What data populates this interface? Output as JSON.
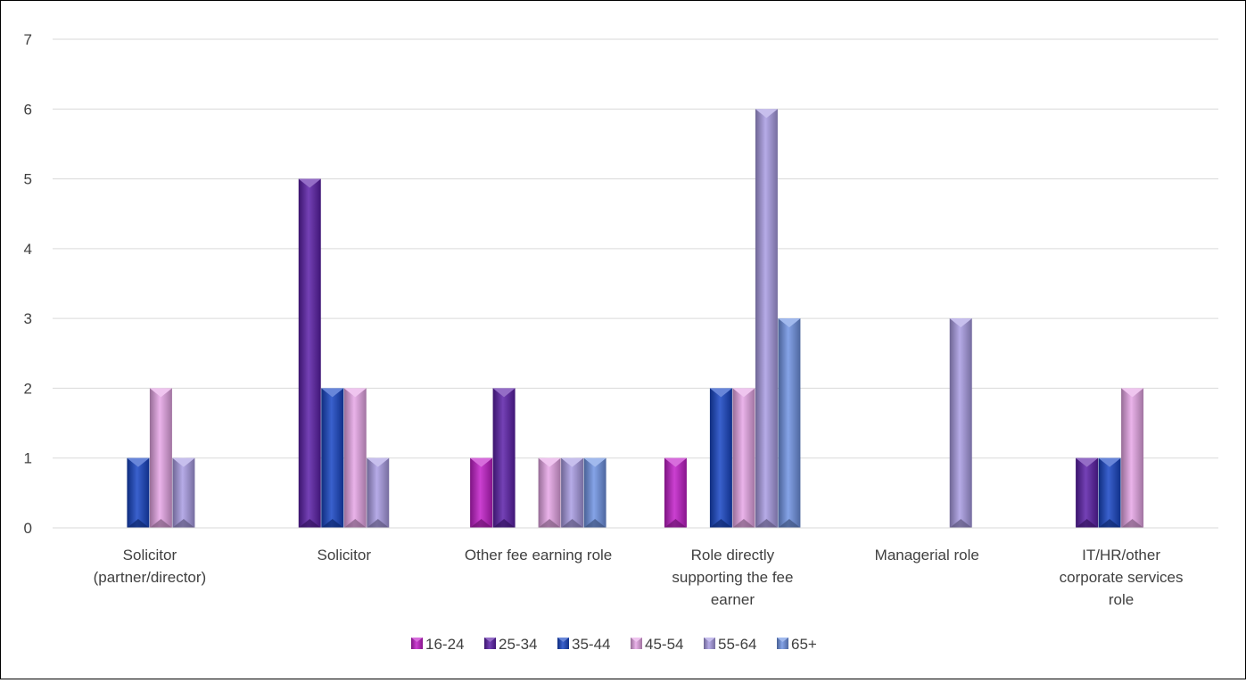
{
  "chart_data": {
    "type": "bar",
    "title": "",
    "xlabel": "",
    "ylabel": "",
    "ylim": [
      0,
      7
    ],
    "yticks": [
      0,
      1,
      2,
      3,
      4,
      5,
      6,
      7
    ],
    "grid": true,
    "legend_position": "bottom",
    "categories": [
      [
        "Solicitor",
        "(partner/director)"
      ],
      [
        "Solicitor"
      ],
      [
        "Other fee earning role"
      ],
      [
        "Role directly",
        "supporting the fee",
        "earner"
      ],
      [
        "Managerial role"
      ],
      [
        "IT/HR/other",
        "corporate services",
        "role"
      ]
    ],
    "series": [
      {
        "name": "16-24",
        "color": "#c21ec9",
        "values": [
          0,
          0,
          1,
          1,
          0,
          0
        ]
      },
      {
        "name": "25-34",
        "color": "#5b1fa8",
        "values": [
          0,
          5,
          2,
          0,
          0,
          1
        ]
      },
      {
        "name": "35-44",
        "color": "#1745c4",
        "values": [
          1,
          2,
          0,
          2,
          0,
          1
        ]
      },
      {
        "name": "45-54",
        "color": "#e6a6e6",
        "values": [
          2,
          2,
          1,
          2,
          0,
          2
        ]
      },
      {
        "name": "55-64",
        "color": "#a99ce3",
        "values": [
          1,
          1,
          1,
          6,
          3,
          0
        ]
      },
      {
        "name": "65+",
        "color": "#6f93e3",
        "values": [
          0,
          0,
          1,
          3,
          0,
          0
        ]
      }
    ]
  }
}
